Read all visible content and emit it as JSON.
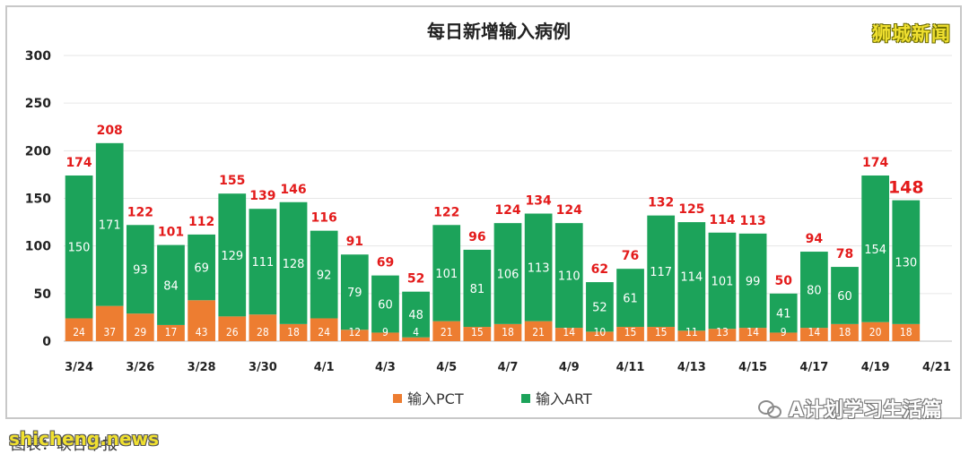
{
  "chart_data": {
    "type": "bar",
    "stacked": true,
    "title": "每日新增输入病例",
    "ylim": [
      0,
      300
    ],
    "yticks": [
      0,
      50,
      100,
      150,
      200,
      250,
      300
    ],
    "grid": true,
    "legend": "bottom-center",
    "categories": [
      "3/24",
      "3/25",
      "3/26",
      "3/27",
      "3/28",
      "3/29",
      "3/30",
      "3/31",
      "4/1",
      "4/2",
      "4/3",
      "4/4",
      "4/5",
      "4/6",
      "4/7",
      "4/8",
      "4/9",
      "4/10",
      "4/11",
      "4/12",
      "4/13",
      "4/14",
      "4/15",
      "4/16",
      "4/17",
      "4/18",
      "4/19",
      "4/20",
      "4/21"
    ],
    "x_tick_labels": [
      "3/24",
      "",
      "3/26",
      "",
      "3/28",
      "",
      "3/30",
      "",
      "4/1",
      "",
      "4/3",
      "",
      "4/5",
      "",
      "4/7",
      "",
      "4/9",
      "",
      "4/11",
      "",
      "4/13",
      "",
      "4/15",
      "",
      "4/17",
      "",
      "4/19",
      "",
      "4/21"
    ],
    "series": [
      {
        "name": "输入PCT",
        "color": "#ed7d31",
        "values": [
          24,
          37,
          29,
          17,
          43,
          26,
          28,
          18,
          24,
          12,
          9,
          4,
          21,
          15,
          18,
          21,
          14,
          10,
          15,
          15,
          11,
          13,
          14,
          9,
          14,
          18,
          20,
          18,
          null
        ]
      },
      {
        "name": "输入ART",
        "color": "#1ca35a",
        "values": [
          150,
          171,
          93,
          84,
          69,
          129,
          111,
          128,
          92,
          79,
          60,
          48,
          101,
          81,
          106,
          113,
          110,
          52,
          61,
          117,
          114,
          101,
          99,
          41,
          80,
          60,
          154,
          130,
          null
        ]
      }
    ],
    "totals": [
      174,
      208,
      122,
      101,
      112,
      155,
      139,
      146,
      116,
      91,
      69,
      52,
      122,
      96,
      124,
      134,
      124,
      62,
      76,
      132,
      125,
      114,
      113,
      50,
      94,
      78,
      174,
      148,
      null
    ],
    "highlight_last_total": true
  },
  "watermarks": {
    "brand": "狮城新闻",
    "account": "A计划学习生活篇",
    "site": "shicheng.news",
    "source": "图表：联合早报"
  },
  "colors": {
    "total_label": "#e31b1b",
    "grid": "#e6e6e6",
    "axis": "#bfbfbf"
  }
}
